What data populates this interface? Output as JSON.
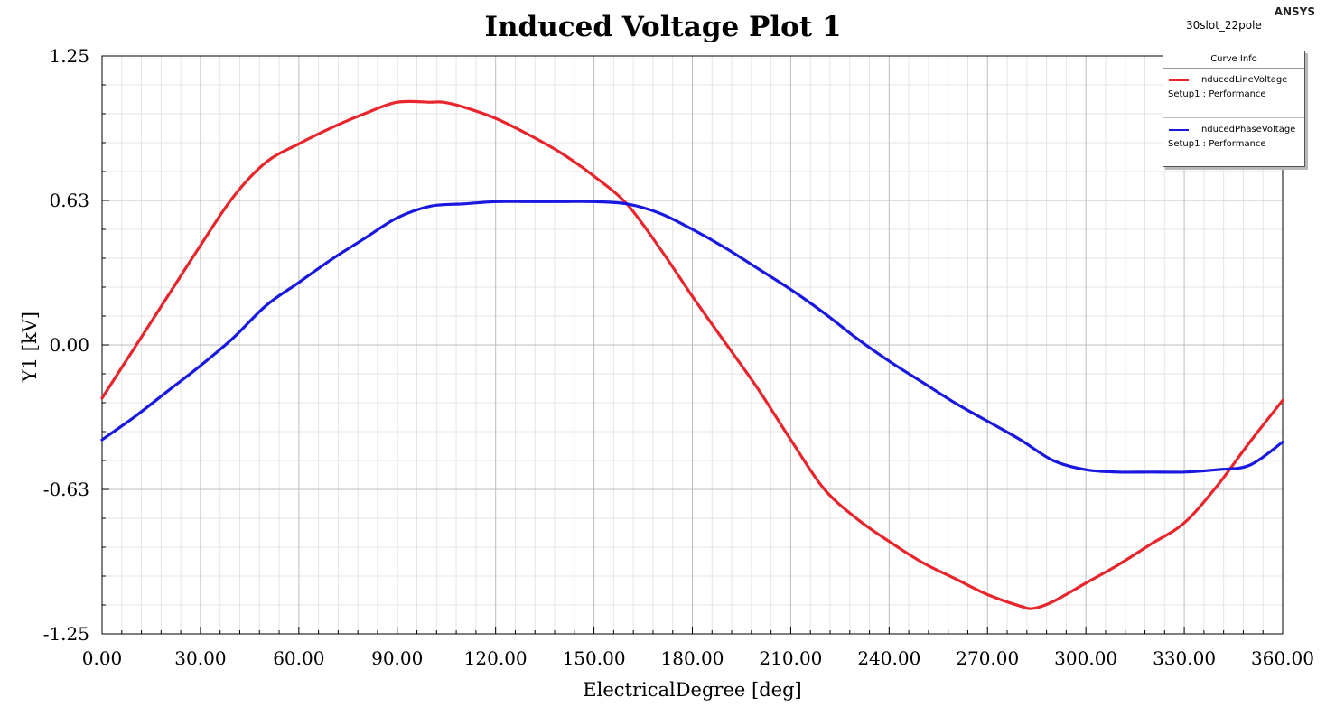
{
  "chart_data": {
    "type": "line",
    "title": "Induced Voltage Plot 1",
    "xlabel": "ElectricalDegree [deg]",
    "ylabel": "Y1 [kV]",
    "xlim": [
      0,
      360
    ],
    "ylim": [
      -1.25,
      1.25
    ],
    "x_ticks": [
      "0.00",
      "30.00",
      "60.00",
      "90.00",
      "120.00",
      "150.00",
      "180.00",
      "210.00",
      "240.00",
      "270.00",
      "300.00",
      "330.00",
      "360.00"
    ],
    "y_ticks": [
      "1.25",
      "0.63",
      "0.00",
      "-0.63",
      "-1.25"
    ],
    "grid": true,
    "legend_position": "top-right",
    "legend_title": "Curve Info",
    "series": [
      {
        "name": "InducedLineVoltage",
        "subtitle": "Setup1 : Performance",
        "color": "#e8242c",
        "x": [
          0,
          10,
          20,
          30,
          40,
          50,
          60,
          70,
          80,
          90,
          100,
          104,
          110,
          120,
          130,
          140,
          150,
          160,
          170,
          180,
          190,
          200,
          210,
          220,
          230,
          240,
          250,
          260,
          270,
          280,
          284,
          290,
          300,
          310,
          320,
          330,
          340,
          350,
          360
        ],
        "y": [
          -0.23,
          -0.01,
          0.21,
          0.43,
          0.64,
          0.79,
          0.87,
          0.94,
          1.0,
          1.05,
          1.05,
          1.05,
          1.03,
          0.98,
          0.91,
          0.83,
          0.73,
          0.61,
          0.42,
          0.21,
          0.01,
          -0.19,
          -0.41,
          -0.62,
          -0.75,
          -0.85,
          -0.94,
          -1.01,
          -1.08,
          -1.13,
          -1.14,
          -1.11,
          -1.03,
          -0.95,
          -0.86,
          -0.77,
          -0.61,
          -0.42,
          -0.24
        ]
      },
      {
        "name": "InducedPhaseVoltage",
        "subtitle": "Setup1 : Performance",
        "color": "#1818e0",
        "x": [
          0,
          10,
          20,
          30,
          40,
          50,
          60,
          70,
          80,
          90,
          100,
          110,
          120,
          130,
          140,
          150,
          160,
          170,
          180,
          190,
          200,
          210,
          220,
          230,
          240,
          250,
          260,
          270,
          280,
          290,
          300,
          310,
          320,
          330,
          340,
          350,
          360
        ],
        "y": [
          -0.41,
          -0.31,
          -0.2,
          -0.09,
          0.03,
          0.17,
          0.27,
          0.37,
          0.46,
          0.55,
          0.6,
          0.61,
          0.62,
          0.62,
          0.62,
          0.62,
          0.61,
          0.57,
          0.5,
          0.42,
          0.33,
          0.24,
          0.14,
          0.03,
          -0.07,
          -0.16,
          -0.25,
          -0.33,
          -0.41,
          -0.5,
          -0.54,
          -0.55,
          -0.55,
          -0.55,
          -0.54,
          -0.52,
          -0.42
        ]
      }
    ]
  },
  "header": {
    "brand": "ANSYS",
    "design_name": "30slot_22pole"
  }
}
